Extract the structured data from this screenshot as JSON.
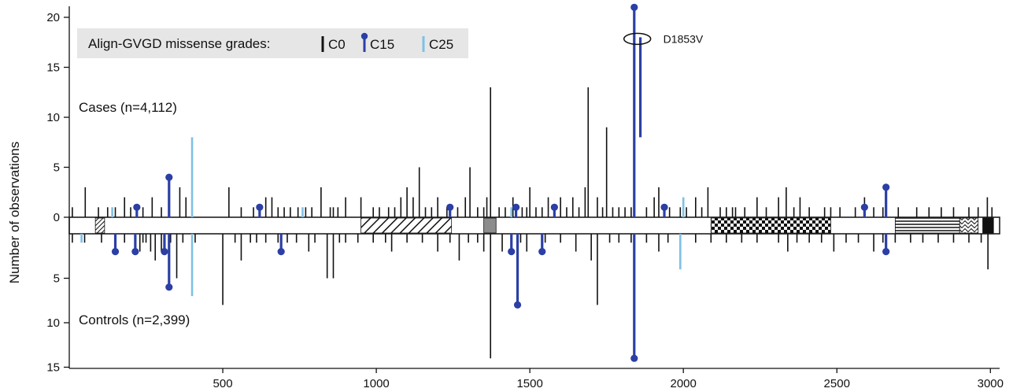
{
  "chart_data": {
    "type": "lollipop",
    "ylabel": "Number of observations",
    "xlim": [
      0,
      3030
    ],
    "xticks": [
      500,
      1000,
      1500,
      2000,
      2500,
      3000
    ],
    "yticks_cases": [
      0,
      5,
      10,
      15,
      20
    ],
    "yticks_controls": [
      5,
      10,
      15
    ],
    "ylim_cases": [
      0,
      20.5
    ],
    "ylim_controls": [
      0,
      15
    ],
    "cases_label": "Cases (n=4,112)",
    "controls_label": "Controls (n=2,399)",
    "legend": {
      "title": "Align-GVGD missense grades:",
      "entries": [
        {
          "label": "C0",
          "color": "#111111",
          "marker": false
        },
        {
          "label": "C15",
          "color": "#2b3fa4",
          "marker": true
        },
        {
          "label": "C25",
          "color": "#7fc0e6",
          "marker": false
        }
      ]
    },
    "callout": {
      "label": "D1853V",
      "x": 1853,
      "y": 18
    },
    "series": [
      {
        "name": "C0",
        "color": "#111111",
        "cases": [
          [
            10,
            1
          ],
          [
            52,
            3
          ],
          [
            95,
            1
          ],
          [
            125,
            1
          ],
          [
            150,
            1
          ],
          [
            180,
            2
          ],
          [
            200,
            1
          ],
          [
            240,
            1
          ],
          [
            270,
            2
          ],
          [
            300,
            1
          ],
          [
            360,
            3
          ],
          [
            380,
            2
          ],
          [
            520,
            3
          ],
          [
            560,
            1
          ],
          [
            600,
            1
          ],
          [
            620,
            1
          ],
          [
            640,
            2
          ],
          [
            660,
            2
          ],
          [
            680,
            1
          ],
          [
            700,
            1
          ],
          [
            720,
            1
          ],
          [
            745,
            1
          ],
          [
            770,
            1
          ],
          [
            790,
            1
          ],
          [
            820,
            3
          ],
          [
            850,
            1
          ],
          [
            860,
            1
          ],
          [
            875,
            1
          ],
          [
            900,
            2
          ],
          [
            950,
            2
          ],
          [
            990,
            1
          ],
          [
            1010,
            1
          ],
          [
            1040,
            1
          ],
          [
            1060,
            1
          ],
          [
            1080,
            2
          ],
          [
            1100,
            3
          ],
          [
            1120,
            2
          ],
          [
            1140,
            5
          ],
          [
            1160,
            1
          ],
          [
            1180,
            1
          ],
          [
            1200,
            2
          ],
          [
            1230,
            1
          ],
          [
            1265,
            1
          ],
          [
            1290,
            2
          ],
          [
            1305,
            5
          ],
          [
            1330,
            1
          ],
          [
            1350,
            1
          ],
          [
            1360,
            2
          ],
          [
            1372,
            13
          ],
          [
            1400,
            1
          ],
          [
            1420,
            1
          ],
          [
            1445,
            2
          ],
          [
            1475,
            1
          ],
          [
            1490,
            1
          ],
          [
            1500,
            3
          ],
          [
            1520,
            1
          ],
          [
            1540,
            1
          ],
          [
            1560,
            2
          ],
          [
            1600,
            2
          ],
          [
            1620,
            1
          ],
          [
            1640,
            2
          ],
          [
            1660,
            1
          ],
          [
            1680,
            3
          ],
          [
            1690,
            13
          ],
          [
            1720,
            2
          ],
          [
            1737,
            1
          ],
          [
            1750,
            9
          ],
          [
            1770,
            1
          ],
          [
            1790,
            1
          ],
          [
            1810,
            1
          ],
          [
            1830,
            1
          ],
          [
            1880,
            1
          ],
          [
            1905,
            2
          ],
          [
            1920,
            3
          ],
          [
            1955,
            1
          ],
          [
            1990,
            1
          ],
          [
            2010,
            1
          ],
          [
            2040,
            2
          ],
          [
            2060,
            1
          ],
          [
            2080,
            3
          ],
          [
            2120,
            1
          ],
          [
            2140,
            1
          ],
          [
            2160,
            1
          ],
          [
            2170,
            1
          ],
          [
            2200,
            1
          ],
          [
            2240,
            2
          ],
          [
            2270,
            1
          ],
          [
            2310,
            2
          ],
          [
            2335,
            3
          ],
          [
            2360,
            1
          ],
          [
            2380,
            2
          ],
          [
            2410,
            1
          ],
          [
            2460,
            1
          ],
          [
            2480,
            1
          ],
          [
            2510,
            1
          ],
          [
            2560,
            1
          ],
          [
            2590,
            2
          ],
          [
            2620,
            1
          ],
          [
            2650,
            1
          ],
          [
            2700,
            1
          ],
          [
            2760,
            1
          ],
          [
            2800,
            1
          ],
          [
            2840,
            1
          ],
          [
            2880,
            1
          ],
          [
            2930,
            1
          ],
          [
            2960,
            1
          ],
          [
            2990,
            2
          ],
          [
            3005,
            1
          ]
        ],
        "controls": [
          [
            10,
            1
          ],
          [
            50,
            1
          ],
          [
            105,
            1
          ],
          [
            180,
            1
          ],
          [
            230,
            2
          ],
          [
            240,
            1
          ],
          [
            250,
            1
          ],
          [
            265,
            2
          ],
          [
            280,
            3
          ],
          [
            300,
            2
          ],
          [
            330,
            1
          ],
          [
            350,
            5
          ],
          [
            370,
            1
          ],
          [
            410,
            1
          ],
          [
            500,
            8
          ],
          [
            540,
            1
          ],
          [
            560,
            3
          ],
          [
            590,
            1
          ],
          [
            610,
            1
          ],
          [
            640,
            1
          ],
          [
            680,
            1
          ],
          [
            710,
            1
          ],
          [
            740,
            1
          ],
          [
            780,
            2
          ],
          [
            800,
            1
          ],
          [
            840,
            5
          ],
          [
            860,
            5
          ],
          [
            880,
            1
          ],
          [
            900,
            1
          ],
          [
            940,
            1
          ],
          [
            990,
            1
          ],
          [
            1030,
            1
          ],
          [
            1050,
            2
          ],
          [
            1100,
            1
          ],
          [
            1150,
            1
          ],
          [
            1200,
            2
          ],
          [
            1240,
            1
          ],
          [
            1270,
            3
          ],
          [
            1300,
            1
          ],
          [
            1330,
            1
          ],
          [
            1350,
            2
          ],
          [
            1372,
            14
          ],
          [
            1410,
            2
          ],
          [
            1440,
            1
          ],
          [
            1470,
            1
          ],
          [
            1490,
            2
          ],
          [
            1550,
            1
          ],
          [
            1600,
            1
          ],
          [
            1650,
            2
          ],
          [
            1700,
            3
          ],
          [
            1720,
            8
          ],
          [
            1760,
            1
          ],
          [
            1790,
            1
          ],
          [
            1830,
            1
          ],
          [
            1880,
            1
          ],
          [
            1920,
            2
          ],
          [
            1950,
            1
          ],
          [
            1990,
            1
          ],
          [
            2040,
            1
          ],
          [
            2090,
            1
          ],
          [
            2140,
            1
          ],
          [
            2190,
            1
          ],
          [
            2240,
            1
          ],
          [
            2310,
            1
          ],
          [
            2340,
            2
          ],
          [
            2370,
            1
          ],
          [
            2410,
            1
          ],
          [
            2450,
            1
          ],
          [
            2490,
            2
          ],
          [
            2530,
            1
          ],
          [
            2570,
            1
          ],
          [
            2620,
            2
          ],
          [
            2650,
            1
          ],
          [
            2690,
            1
          ],
          [
            2740,
            1
          ],
          [
            2780,
            1
          ],
          [
            2830,
            1
          ],
          [
            2880,
            1
          ],
          [
            2930,
            1
          ],
          [
            2970,
            1
          ],
          [
            2992,
            4
          ]
        ]
      },
      {
        "name": "C15",
        "color": "#2b3fa4",
        "cases": [
          [
            220,
            1
          ],
          [
            325,
            4
          ],
          [
            620,
            1
          ],
          [
            1240,
            1
          ],
          [
            1455,
            1
          ],
          [
            1580,
            1
          ],
          [
            1840,
            21
          ],
          [
            1860,
            18
          ],
          [
            1938,
            1
          ],
          [
            2590,
            1
          ],
          [
            2660,
            3
          ]
        ],
        "controls": [
          [
            150,
            2
          ],
          [
            215,
            2
          ],
          [
            310,
            2
          ],
          [
            325,
            6
          ],
          [
            690,
            2
          ],
          [
            1440,
            2
          ],
          [
            1460,
            8
          ],
          [
            1540,
            2
          ],
          [
            1840,
            14
          ],
          [
            2660,
            2
          ]
        ]
      },
      {
        "name": "C25",
        "color": "#7fc0e6",
        "cases": [
          [
            140,
            1
          ],
          [
            400,
            8
          ],
          [
            760,
            1
          ],
          [
            1440,
            1
          ],
          [
            2000,
            2
          ]
        ],
        "controls": [
          [
            40,
            1
          ],
          [
            400,
            7
          ],
          [
            1990,
            4
          ]
        ]
      }
    ],
    "domains": [
      {
        "start": 85,
        "end": 115,
        "pattern": "diag-dense"
      },
      {
        "start": 950,
        "end": 1245,
        "pattern": "diag"
      },
      {
        "start": 1350,
        "end": 1390,
        "pattern": "gray"
      },
      {
        "start": 2090,
        "end": 2480,
        "pattern": "checker"
      },
      {
        "start": 2690,
        "end": 2900,
        "pattern": "hlines"
      },
      {
        "start": 2900,
        "end": 2960,
        "pattern": "waves"
      },
      {
        "start": 2975,
        "end": 3010,
        "pattern": "black"
      }
    ]
  }
}
